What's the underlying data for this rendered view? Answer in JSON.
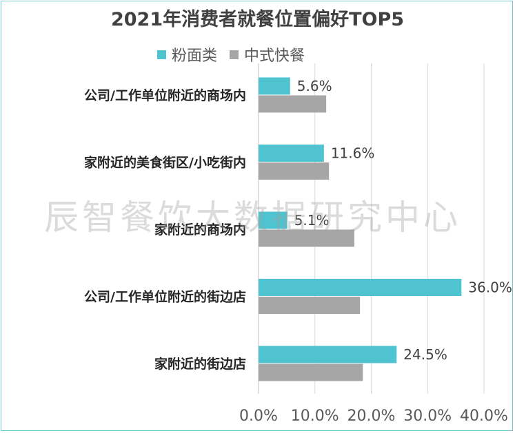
{
  "chart_data": {
    "type": "bar",
    "orientation": "horizontal",
    "title": "2021年消费者就餐位置偏好TOP5",
    "categories": [
      "公司/工作单位附近的商场内",
      "家附近的美食街区/小吃街内",
      "家附近的商场内",
      "公司/工作单位附近的街边店",
      "家附近的街边店"
    ],
    "series": [
      {
        "name": "粉面类",
        "color": "#4fc3d0",
        "values": [
          5.6,
          11.6,
          5.1,
          36.0,
          24.5
        ],
        "data_labels": [
          "5.6%",
          "11.6%",
          "5.1%",
          "36.0%",
          "24.5%"
        ]
      },
      {
        "name": "中式快餐",
        "color": "#a6a6a6",
        "values": [
          12.0,
          12.5,
          17.0,
          18.0,
          18.5
        ]
      }
    ],
    "xlim": [
      0,
      40
    ],
    "x_ticks": [
      "0.0%",
      "10.0%",
      "20.0%",
      "30.0%",
      "40.0%"
    ],
    "grid": true,
    "legend_position": "top"
  },
  "watermark": "辰智餐饮大数据研究中心"
}
